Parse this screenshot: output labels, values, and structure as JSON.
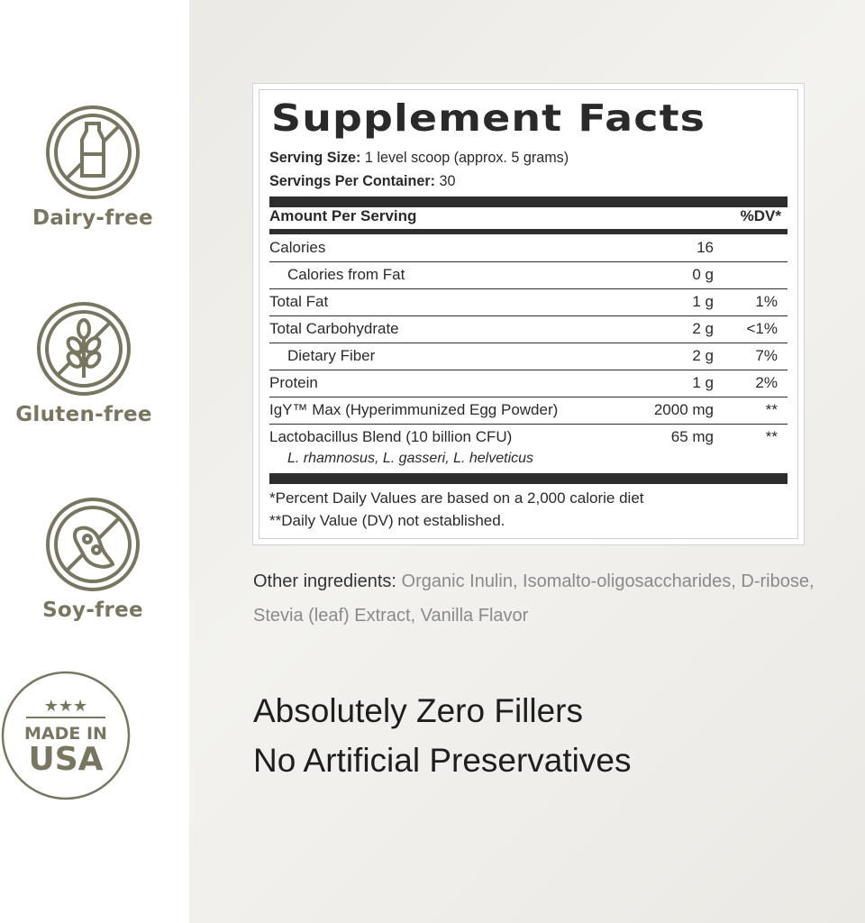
{
  "badges": [
    {
      "label": "Dairy-free",
      "icon": "no-dairy-icon"
    },
    {
      "label": "Gluten-free",
      "icon": "no-gluten-icon"
    },
    {
      "label": "Soy-free",
      "icon": "no-soy-icon"
    },
    {
      "label": "Made in USA seal",
      "icon": "made-in-usa-icon",
      "seal_text": [
        "MADE IN",
        "USA"
      ]
    }
  ],
  "colors": {
    "badge": "#787660",
    "text": "#2a2a2a"
  },
  "facts": {
    "title": "Supplement Facts",
    "serving_size_label": "Serving Size:",
    "serving_size": "1 level scoop (approx. 5 grams)",
    "servings_label": "Servings Per Container:",
    "servings": "30",
    "amount_header": "Amount Per Serving",
    "dv_header": "%DV*",
    "rows": [
      {
        "name": "Calories",
        "amount": "16",
        "dv": ""
      },
      {
        "name": "Calories from Fat",
        "amount": "0 g",
        "dv": ""
      },
      {
        "name": "Total Fat",
        "amount": "1 g",
        "dv": "1%"
      },
      {
        "name": "Total Carbohydrate",
        "amount": "2 g",
        "dv": "<1%"
      },
      {
        "name": "Dietary Fiber",
        "amount": "2 g",
        "dv": "7%"
      },
      {
        "name": "Protein",
        "amount": "1 g",
        "dv": "2%"
      },
      {
        "name": "IgY™ Max (Hyperimmunized Egg Powder)",
        "amount": "2000 mg",
        "dv": "**"
      },
      {
        "name": "Lactobacillus Blend (10 billion CFU)",
        "amount": "65 mg",
        "dv": "**",
        "sub": "L. rhamnosus, L. gasseri, L. helveticus"
      }
    ],
    "footnote1": "*Percent Daily Values are based on a 2,000 calorie diet",
    "footnote2": "**Daily Value (DV) not established."
  },
  "other": {
    "label": "Other ingredients:",
    "text": "Organic Inulin, Isomalto-oligosaccharides, D-ribose, Stevia (leaf) Extract, Vanilla Flavor"
  },
  "claims": [
    "Absolutely Zero Fillers",
    "No Artificial Preservatives"
  ]
}
